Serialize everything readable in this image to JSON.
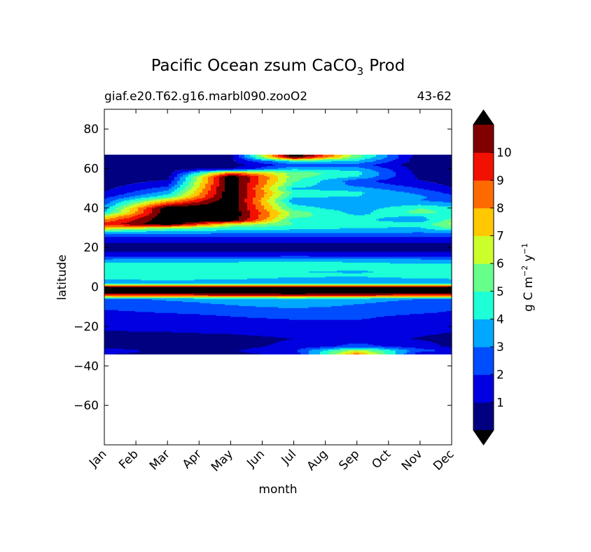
{
  "chart_data": {
    "type": "heatmap",
    "title": "Pacific Ocean zsum CaCO",
    "title_subscript": "3",
    "title_suffix": "Prod",
    "subtitle_left": "giaf.e20.T62.g16.marbl090.zooO2",
    "subtitle_right": "43-62",
    "xlabel": "month",
    "ylabel": "latitude",
    "x_ticks": [
      "Jan",
      "Feb",
      "Mar",
      "Apr",
      "May",
      "Jun",
      "Jul",
      "Aug",
      "Sep",
      "Oct",
      "Nov",
      "Dec"
    ],
    "y_ticks": [
      "80",
      "60",
      "40",
      "20",
      "0",
      "−20",
      "−40",
      "−60"
    ],
    "y_tick_values": [
      80,
      60,
      40,
      20,
      0,
      -20,
      -40,
      -60
    ],
    "ylim": [
      -80,
      90
    ],
    "xlim": [
      0,
      11
    ],
    "data_lat_range": [
      -34,
      67
    ],
    "colorbar": {
      "label_text": "g C m",
      "label_exp1": "−2",
      "label_mid": " y",
      "label_exp2": "−1",
      "levels": [
        0,
        1,
        2,
        3,
        4,
        5,
        6,
        7,
        8,
        9,
        10,
        11
      ],
      "tick_labels": [
        "1",
        "2",
        "3",
        "4",
        "5",
        "6",
        "7",
        "8",
        "9",
        "10"
      ],
      "extend": "both",
      "colors": [
        "#000080",
        "#0000e0",
        "#004cff",
        "#00a8ff",
        "#1dffd6",
        "#66ff8a",
        "#ccff2a",
        "#ffc800",
        "#ff6a00",
        "#f21000",
        "#800000"
      ],
      "under_color": "#000000",
      "over_color": "#000000"
    },
    "lat_profiles": {
      "lats": [
        -34,
        -32,
        -30,
        -26,
        -22,
        -18,
        -14,
        -10,
        -6,
        -4,
        -2,
        0,
        2,
        4,
        6,
        8,
        10,
        12,
        14,
        16,
        18,
        20,
        22,
        24,
        26,
        28,
        30,
        32,
        34,
        36,
        38,
        40,
        42,
        44,
        46,
        48,
        50,
        52,
        54,
        56,
        58,
        60,
        62,
        64,
        66,
        67
      ],
      "Jan": [
        1.0,
        1.5,
        0.6,
        0.5,
        1.0,
        1.1,
        1.6,
        2.2,
        2.8,
        9.5,
        12,
        12,
        3.2,
        4.0,
        5.0,
        4.4,
        4.6,
        4.2,
        3.2,
        1.5,
        1.0,
        0.5,
        0.8,
        1.4,
        2.3,
        3.8,
        7.5,
        9.4,
        8.3,
        6.5,
        4.0,
        3.5,
        2.8,
        2.2,
        1.6,
        1.0,
        0.7,
        0.5,
        0.5,
        0.4,
        0.3,
        0.3,
        0.2,
        0.3,
        0.2,
        0.2
      ],
      "Mar": [
        0.7,
        0.7,
        0.6,
        0.5,
        1.1,
        1.3,
        1.8,
        2.6,
        3.1,
        9.5,
        12,
        12,
        3.2,
        4.2,
        4.6,
        4.3,
        4.6,
        4.2,
        3.3,
        1.6,
        1.0,
        0.5,
        0.8,
        1.4,
        2.3,
        3.6,
        5.8,
        12,
        12,
        12,
        12,
        12,
        9.6,
        7.2,
        4.6,
        3.5,
        2.5,
        1.7,
        1.0,
        0.5,
        0.3,
        0.3,
        0.2,
        0.3,
        0.2,
        0.2
      ],
      "May": [
        0.8,
        0.9,
        0.6,
        0.6,
        1.3,
        1.6,
        2.1,
        2.9,
        3.3,
        10,
        12,
        12,
        3.1,
        4.0,
        4.4,
        4.2,
        4.6,
        4.3,
        3.4,
        1.7,
        1.0,
        0.5,
        0.8,
        1.4,
        2.2,
        3.4,
        4.7,
        6.8,
        12,
        12,
        12,
        12,
        12,
        12,
        12,
        12,
        12,
        12,
        12,
        12,
        8.5,
        1.0,
        0.5,
        0.8,
        0.5,
        0.3
      ],
      "Jul": [
        1.1,
        1.8,
        1.3,
        1.0,
        1.6,
        1.8,
        2.3,
        3.1,
        3.4,
        10.5,
        12,
        12,
        3.0,
        3.8,
        4.2,
        4.0,
        4.7,
        4.6,
        3.6,
        1.8,
        1.0,
        0.5,
        0.8,
        1.4,
        2.2,
        3.3,
        4.4,
        5.0,
        4.5,
        5.4,
        5.6,
        4.5,
        4.0,
        3.2,
        4.3,
        4.8,
        3.8,
        4.8,
        5.2,
        5.4,
        5.6,
        3.8,
        2.5,
        4.5,
        12,
        12
      ],
      "Sep": [
        8.5,
        6.5,
        2.4,
        1.5,
        1.9,
        1.9,
        2.2,
        2.9,
        3.2,
        10,
        12,
        12,
        3.1,
        3.7,
        4.1,
        3.9,
        4.4,
        4.2,
        3.5,
        1.7,
        1.0,
        0.5,
        0.8,
        1.4,
        2.2,
        3.2,
        4.0,
        4.4,
        4.2,
        4.1,
        3.6,
        3.4,
        3.2,
        3.0,
        4.0,
        4.2,
        3.5,
        2.6,
        2.4,
        4.0,
        4.4,
        3.5,
        2.5,
        4.0,
        5.5,
        5.5
      ],
      "Nov": [
        1.2,
        2.4,
        1.5,
        0.9,
        1.3,
        1.5,
        1.9,
        2.6,
        3.0,
        9.5,
        12,
        12,
        3.1,
        3.8,
        4.5,
        4.2,
        4.3,
        4.0,
        3.2,
        1.6,
        1.0,
        0.5,
        0.8,
        1.4,
        2.2,
        3.1,
        3.9,
        4.3,
        3.5,
        4.0,
        5.4,
        5.0,
        3.9,
        3.0,
        3.2,
        2.7,
        2.0,
        1.5,
        1.0,
        0.7,
        0.6,
        0.4,
        0.3,
        0.4,
        0.3,
        0.3
      ],
      "Dec": [
        1.0,
        1.8,
        0.8,
        0.6,
        1.1,
        1.2,
        1.7,
        2.3,
        2.9,
        9.5,
        12,
        12,
        3.2,
        3.9,
        4.8,
        4.3,
        4.4,
        4.1,
        3.2,
        1.5,
        1.0,
        0.5,
        0.8,
        1.4,
        2.2,
        3.3,
        5.2,
        6.2,
        5.4,
        4.5,
        4.8,
        4.4,
        3.3,
        2.6,
        2.2,
        1.7,
        1.1,
        0.7,
        0.5,
        0.4,
        0.3,
        0.3,
        0.2,
        0.3,
        0.2,
        0.2
      ]
    }
  }
}
